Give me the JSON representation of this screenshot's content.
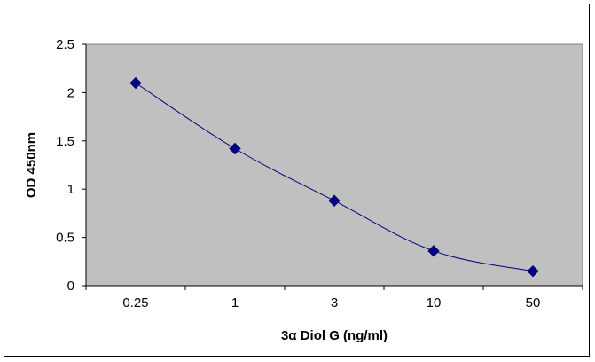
{
  "chart_data": {
    "type": "line",
    "title": "",
    "xlabel": "3α Diol G (ng/ml)",
    "ylabel": "OD 450nm",
    "categories": [
      "0.25",
      "1",
      "3",
      "10",
      "50"
    ],
    "series": [
      {
        "values": [
          2.1,
          1.42,
          0.88,
          0.36,
          0.15
        ]
      }
    ],
    "ylim": [
      0,
      2.5
    ],
    "yticks": [
      "0",
      "0.5",
      "1",
      "1.5",
      "2",
      "2.5"
    ],
    "grid": false,
    "legend": "none",
    "colors": {
      "plot_background": "#c0c0c0",
      "series_line": "#000080",
      "marker": "#000080"
    }
  }
}
